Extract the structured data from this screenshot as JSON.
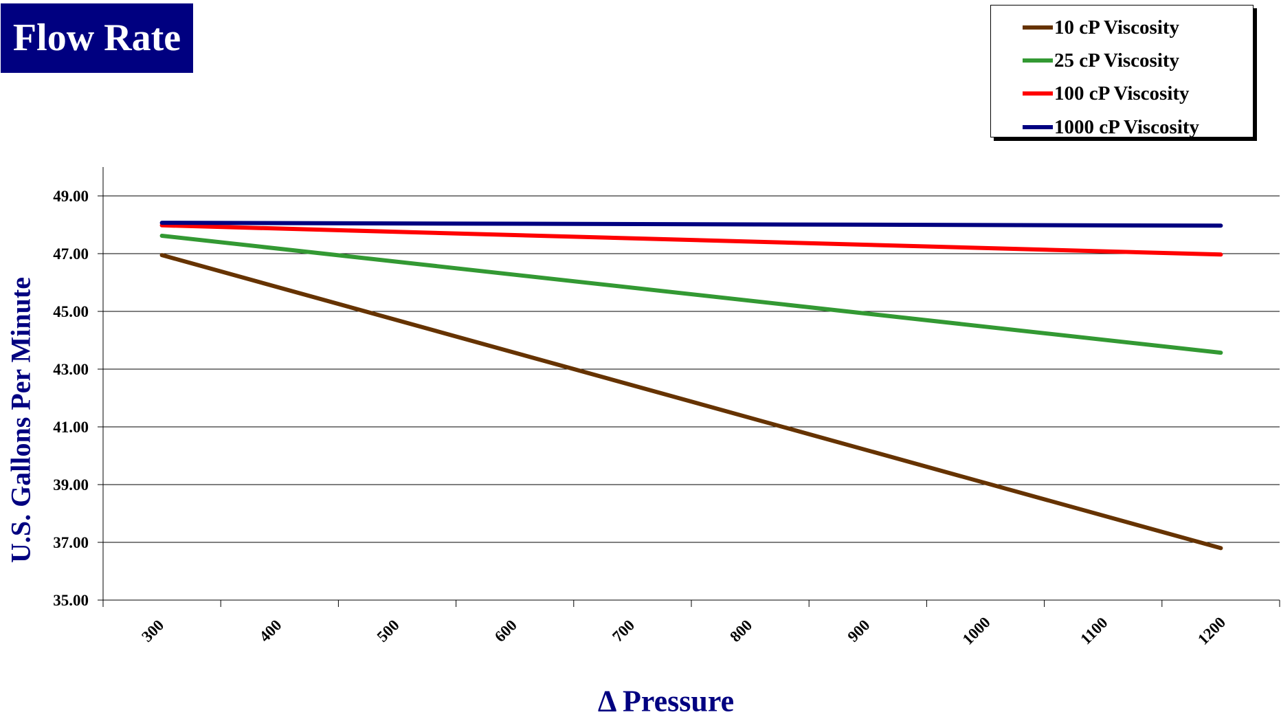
{
  "chart_data": {
    "type": "line",
    "title": "Flow Rate",
    "xlabel": "Δ Pressure",
    "ylabel": "U.S. Gallons Per Minute",
    "ylim": [
      35,
      50
    ],
    "y_ticks": [
      "35.00",
      "37.00",
      "39.00",
      "41.00",
      "43.00",
      "45.00",
      "47.00",
      "49.00"
    ],
    "categories": [
      "300",
      "400",
      "500",
      "600",
      "700",
      "800",
      "900",
      "1000",
      "1100",
      "1200"
    ],
    "grid": true,
    "legend_position": "top-right",
    "series": [
      {
        "name": "10 cP Viscosity",
        "color": "#663300",
        "x": [
          300,
          1200
        ],
        "values": [
          46.95,
          36.8
        ]
      },
      {
        "name": "25 cP Viscosity",
        "color": "#339933",
        "x": [
          300,
          1200
        ],
        "values": [
          47.62,
          43.57
        ]
      },
      {
        "name": "100 cP Viscosity",
        "color": "#ff0000",
        "x": [
          300,
          1200
        ],
        "values": [
          47.98,
          46.97
        ]
      },
      {
        "name": "1000 cP Viscosity",
        "color": "#000080",
        "x": [
          300,
          1200
        ],
        "values": [
          48.07,
          47.97
        ]
      }
    ]
  }
}
